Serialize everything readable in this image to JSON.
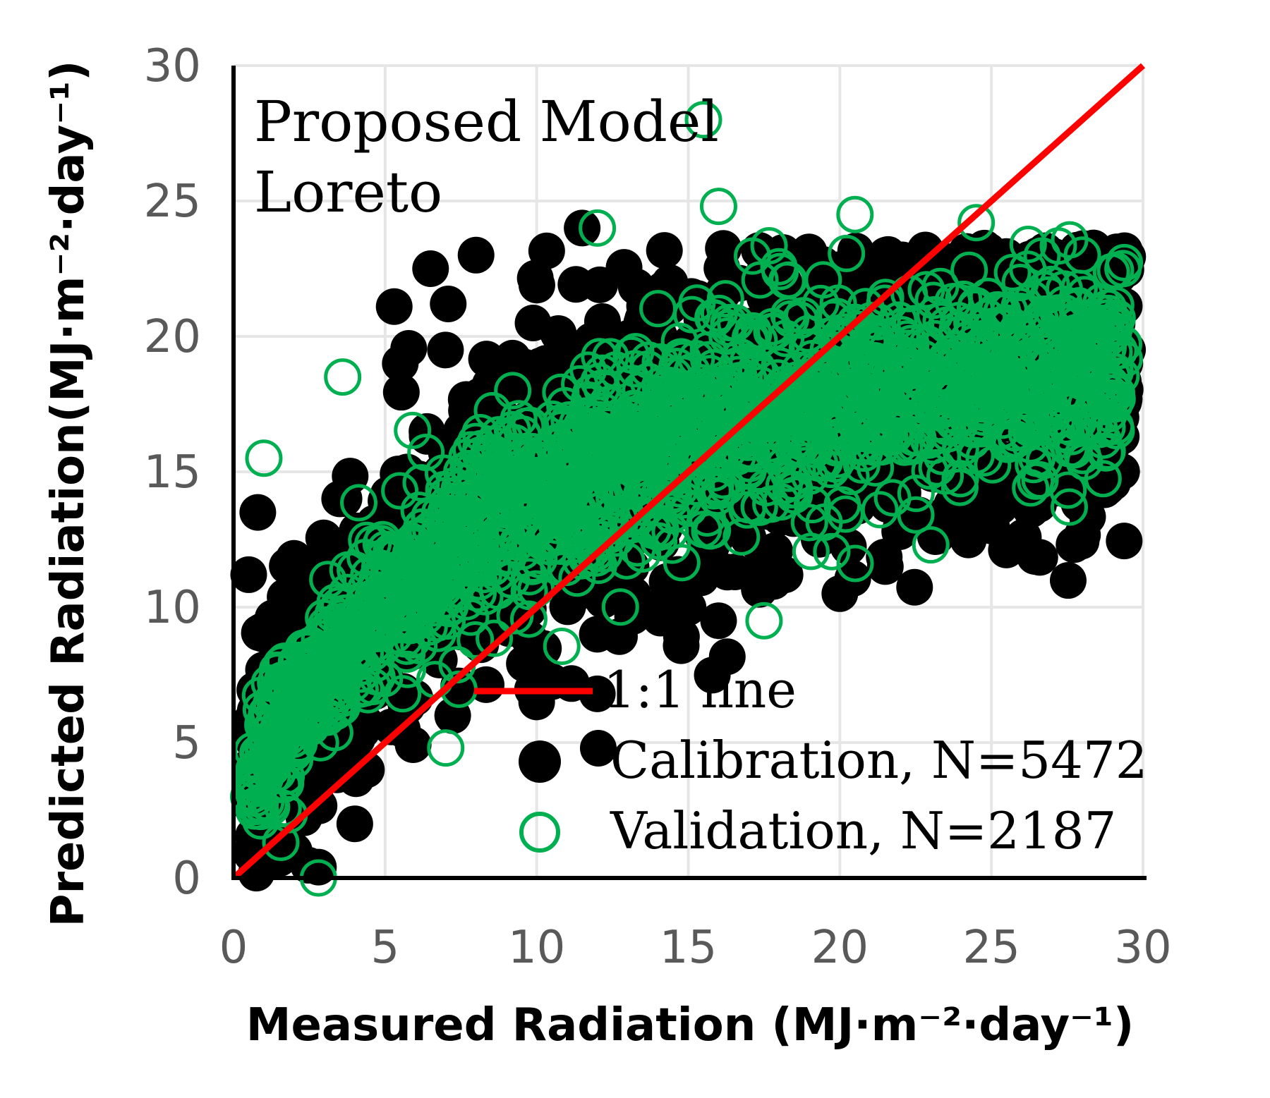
{
  "chart_data": {
    "type": "scatter",
    "title_lines": [
      "Proposed Model",
      "Loreto"
    ],
    "xlabel": "Measured Radiation (MJ·m⁻²·day⁻¹)",
    "ylabel": "Predicted Radiation(MJ·m⁻²·day⁻¹)",
    "xlim": [
      0,
      30
    ],
    "ylim": [
      0,
      30
    ],
    "xticks": [
      "0",
      "5",
      "10",
      "15",
      "20",
      "25",
      "30"
    ],
    "yticks": [
      "0",
      "5",
      "10",
      "15",
      "20",
      "25",
      "30"
    ],
    "grid": true,
    "legend_position": "bottom-right",
    "colors": {
      "calibration": "#000000",
      "validation": "#00b050",
      "one_to_one": "#ff0000",
      "grid": "#e6e6e6"
    },
    "reference_line": {
      "name": "1:1 line",
      "x": [
        0,
        30
      ],
      "y": [
        0,
        30
      ]
    },
    "series": [
      {
        "name": "Calibration, N=5472",
        "marker": "filled-circle",
        "points": [
          [
            0.5,
            11.2
          ],
          [
            0.8,
            13.5
          ],
          [
            1.0,
            9.0
          ],
          [
            1.2,
            6.0
          ],
          [
            1.5,
            3.0
          ],
          [
            2.0,
            1.0
          ],
          [
            2.8,
            0.4
          ],
          [
            3.5,
            14.0
          ],
          [
            4.0,
            2.0
          ],
          [
            5.3,
            21.1
          ],
          [
            5.5,
            19.0
          ],
          [
            6.5,
            22.5
          ],
          [
            8.0,
            23.0
          ],
          [
            11.5,
            24.0
          ],
          [
            12.0,
            6.8
          ],
          [
            10.0,
            6.5
          ],
          [
            12.0,
            9.0
          ],
          [
            16.0,
            9.5
          ],
          [
            20.0,
            10.5
          ],
          [
            21.5,
            11.5
          ],
          [
            25.0,
            13.0
          ],
          [
            27.0,
            14.5
          ],
          [
            28.5,
            19.0
          ],
          [
            29.0,
            21.0
          ]
        ]
      },
      {
        "name": "Validation, N=2187",
        "marker": "open-circle",
        "points": [
          [
            0.5,
            3.0
          ],
          [
            1.0,
            15.5
          ],
          [
            2.8,
            0.0
          ],
          [
            3.6,
            18.5
          ],
          [
            7.0,
            4.8
          ],
          [
            12.0,
            24.0
          ],
          [
            15.5,
            28.0
          ],
          [
            16.0,
            24.8
          ],
          [
            24.5,
            24.2
          ],
          [
            17.5,
            9.5
          ],
          [
            23.0,
            12.3
          ],
          [
            26.5,
            15.5
          ],
          [
            28.0,
            23.0
          ],
          [
            20.5,
            24.5
          ]
        ]
      }
    ]
  }
}
